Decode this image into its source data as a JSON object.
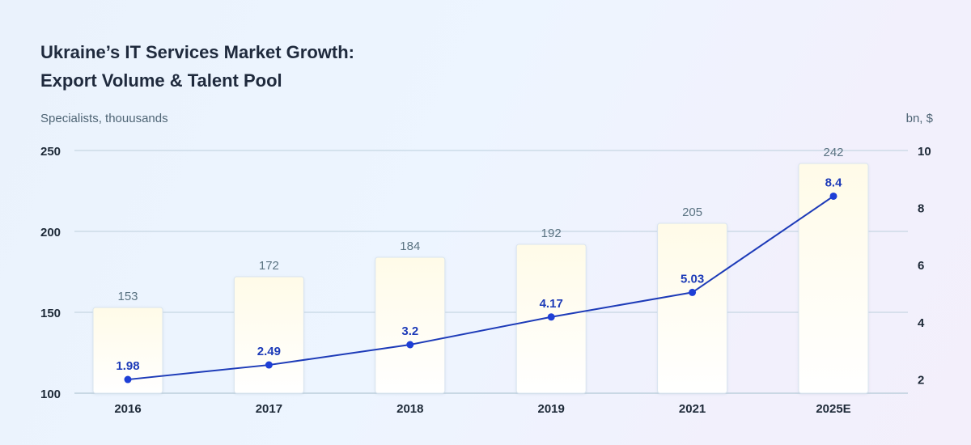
{
  "chart_data": {
    "type": "bar",
    "title_lines": [
      "Ukraine’s IT Services Market Growth:",
      "Export Volume & Talent Pool"
    ],
    "ylabel_left": "Specialists, thouusands",
    "ylabel_right": "bn, $",
    "categories": [
      "2016",
      "2017",
      "2018",
      "2019",
      "2021",
      "2025E"
    ],
    "y_left": {
      "ticks": [
        100,
        150,
        200,
        250
      ],
      "range": [
        100,
        250
      ]
    },
    "y_right": {
      "ticks": [
        2,
        4,
        6,
        8,
        10
      ],
      "range": [
        1.5,
        10
      ]
    },
    "grid": true,
    "legend": "none",
    "series": [
      {
        "type": "bar",
        "axis": "left",
        "values": [
          153,
          172,
          184,
          192,
          205,
          242
        ],
        "labels": [
          "153",
          "172",
          "184",
          "192",
          "205",
          "242"
        ]
      },
      {
        "type": "line",
        "axis": "right",
        "values": [
          1.98,
          2.49,
          3.2,
          4.17,
          5.03,
          8.4
        ],
        "labels": [
          "1.98",
          "2.49",
          "3.2",
          "4.17",
          "5.03",
          "8.4"
        ]
      }
    ]
  },
  "colors": {
    "bar_fill_top": "#fffbe8",
    "bar_fill_bottom": "#ffffff",
    "bar_stroke": "#d9e4ef",
    "line": "#1d3bb8",
    "point": "#1e3fd6",
    "point_label": "#1d3bb8",
    "bar_label": "#5a7382",
    "gridline": "#bccfdc",
    "axis_tick_label": "#1e2a38",
    "title": "#1f2a3d"
  }
}
